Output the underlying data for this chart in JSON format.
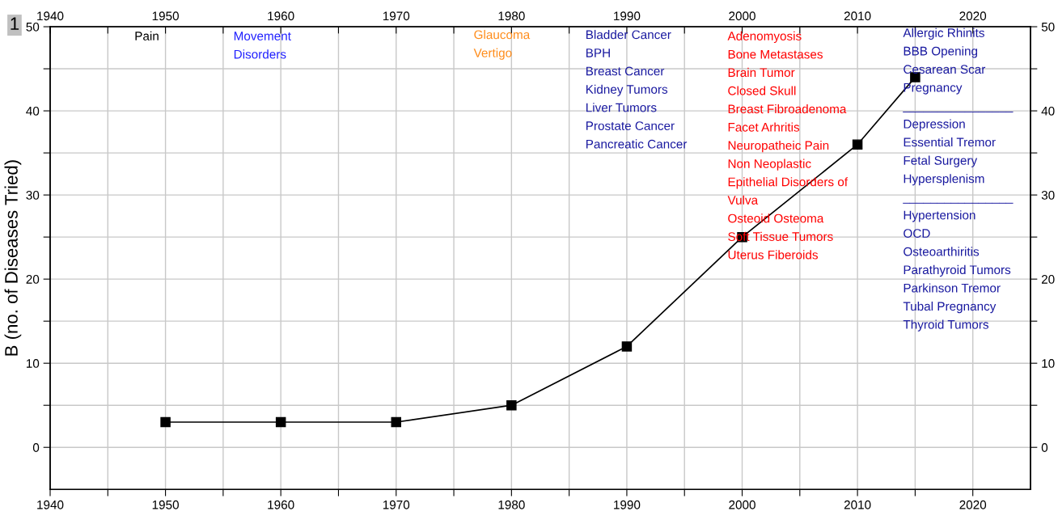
{
  "chart_data": {
    "type": "line",
    "ylabel": "B (no. of Diseases Tried)",
    "x": [
      1950,
      1960,
      1970,
      1980,
      1990,
      2000,
      2010,
      2015
    ],
    "series": [
      {
        "color": "#000000",
        "values": [
          3,
          3,
          3,
          5,
          12,
          25,
          36,
          44
        ]
      }
    ],
    "marker": "square",
    "line_style": "solid",
    "grid": true,
    "xlim": [
      1940,
      2025
    ],
    "ylim": [
      -5,
      50
    ],
    "xticks": [
      1940,
      {
        "value": 1945,
        "label": null
      },
      1950,
      {
        "value": 1955,
        "label": null
      },
      1960,
      {
        "value": 1965,
        "label": null
      },
      1970,
      {
        "value": 1975,
        "label": null
      },
      1980,
      {
        "value": 1985,
        "label": null
      },
      1990,
      {
        "value": 1995,
        "label": null
      },
      2000,
      {
        "value": 2005,
        "label": null
      },
      2010,
      {
        "value": 2015,
        "label": null
      },
      2020
    ],
    "x2lim": [
      1940,
      2025
    ],
    "x2ticks": [
      1940,
      {
        "value": 1945,
        "label": null
      },
      1950,
      {
        "value": 1955,
        "label": null
      },
      1960,
      {
        "value": 1965,
        "label": null
      },
      1970,
      {
        "value": 1975,
        "label": null
      },
      1980,
      {
        "value": 1985,
        "label": null
      },
      1990,
      {
        "value": 1995,
        "label": null
      },
      2000,
      {
        "value": 2005,
        "label": null
      },
      2010,
      {
        "value": 2015,
        "label": null
      },
      2020
    ],
    "yticks": [
      0,
      {
        "value": 5,
        "label": null
      },
      10,
      {
        "value": 15,
        "label": null
      },
      20,
      {
        "value": 25,
        "label": null
      },
      30,
      {
        "value": 35,
        "label": null
      },
      40,
      {
        "value": 45,
        "label": null
      },
      50
    ],
    "y2lim": [
      -5,
      50
    ],
    "y2ticks": [
      0,
      {
        "value": 5,
        "label": null
      },
      10,
      {
        "value": 15,
        "label": null
      },
      20,
      {
        "value": 25,
        "label": null
      },
      30,
      {
        "value": 35,
        "label": null
      },
      40,
      {
        "value": 45,
        "label": null
      },
      50
    ],
    "annotations": [
      "1",
      "Pain",
      "Movement\nDisorders",
      "Glaucoma\nVertigo",
      "Bladder Cancer\nBPH\nBreast Cancer\nKidney Tumors\nLiver Tumors\nProstate Cancer\nPancreatic Cancer",
      "Adenomyosis\nBone Metastases\nBrain Tumor\nClosed Skull\nBreast Fibroadenoma\nFacet Arhritis\nNeuropatheic Pain\nNon Neoplastic\nEpithelial Disorders of\nVulva\nOsteoid Osteoma\nSoft Tissue Tumors\nUterus Fiberoids",
      "Allergic Rhinits\nBBB Opening\nCesarean Scar\nPregnancy\n________________\nDepression\nEssential Tremor\nFetal Surgery\nHypersplenism\n________________\nHypertension\nOCD\nOsteoarthiritis\nParathyroid Tumors\nParkinson Tremor\nTubal Pregnancy\nThyroid Tumors"
    ]
  }
}
